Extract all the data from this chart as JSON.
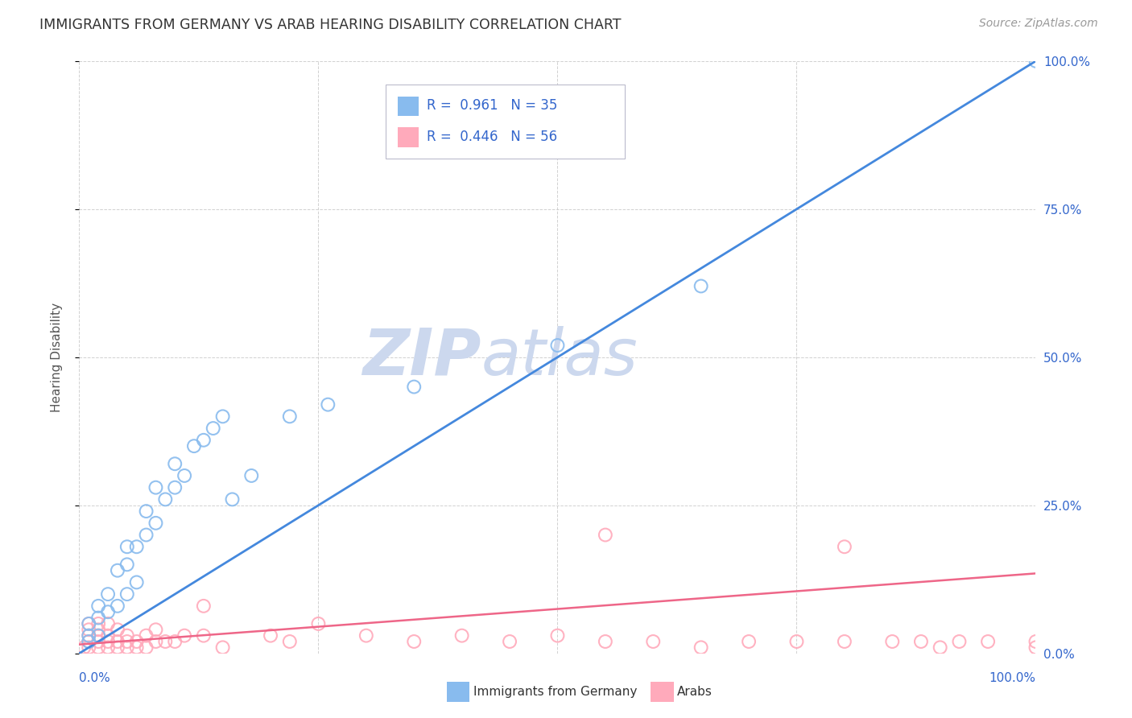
{
  "title": "IMMIGRANTS FROM GERMANY VS ARAB HEARING DISABILITY CORRELATION CHART",
  "source": "Source: ZipAtlas.com",
  "ylabel": "Hearing Disability",
  "ytick_values": [
    0,
    25,
    50,
    75,
    100
  ],
  "xtick_values": [
    0,
    25,
    50,
    75,
    100
  ],
  "blue_line_color": "#4488dd",
  "pink_line_color": "#ee6688",
  "blue_scatter_color": "#88bbee",
  "pink_scatter_color": "#ffaabb",
  "watermark_color": "#ccd8ee",
  "grid_color": "#cccccc",
  "background_color": "#ffffff",
  "blue_x": [
    1,
    1,
    1,
    2,
    2,
    2,
    3,
    3,
    4,
    4,
    5,
    5,
    5,
    6,
    6,
    7,
    7,
    8,
    8,
    9,
    10,
    10,
    11,
    12,
    13,
    14,
    15,
    16,
    18,
    22,
    26,
    35,
    50,
    65,
    100
  ],
  "blue_y": [
    2,
    3,
    5,
    3,
    6,
    8,
    7,
    10,
    8,
    14,
    10,
    15,
    18,
    12,
    18,
    20,
    24,
    22,
    28,
    26,
    28,
    32,
    30,
    35,
    36,
    38,
    40,
    26,
    30,
    40,
    42,
    45,
    52,
    62,
    100
  ],
  "pink_x": [
    0.5,
    1,
    1,
    1,
    1,
    1,
    2,
    2,
    2,
    2,
    2,
    3,
    3,
    3,
    3,
    4,
    4,
    4,
    5,
    5,
    5,
    6,
    6,
    7,
    7,
    8,
    8,
    9,
    10,
    11,
    13,
    13,
    15,
    20,
    22,
    25,
    30,
    35,
    40,
    45,
    50,
    55,
    60,
    65,
    70,
    75,
    80,
    85,
    88,
    90,
    92,
    95,
    100,
    100,
    55,
    80
  ],
  "pink_y": [
    1,
    1,
    2,
    3,
    4,
    5,
    1,
    2,
    3,
    4,
    5,
    1,
    2,
    3,
    5,
    1,
    2,
    4,
    1,
    2,
    3,
    1,
    2,
    1,
    3,
    2,
    4,
    2,
    2,
    3,
    3,
    8,
    1,
    3,
    2,
    5,
    3,
    2,
    3,
    2,
    3,
    2,
    2,
    1,
    2,
    2,
    2,
    2,
    2,
    1,
    2,
    2,
    1,
    2,
    20,
    18
  ]
}
